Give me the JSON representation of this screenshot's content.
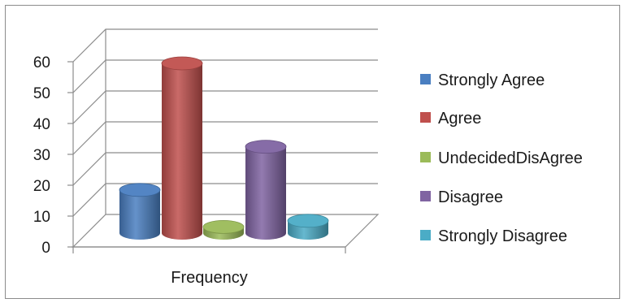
{
  "chart_data": {
    "type": "bar",
    "style": "3d-cylinder",
    "categories": [
      "Frequency"
    ],
    "series": [
      {
        "name": "Strongly Agree",
        "values": [
          14
        ],
        "color": "#4a7fc1"
      },
      {
        "name": "Agree",
        "values": [
          55
        ],
        "color": "#c0504d"
      },
      {
        "name": "UndecidedDisAgree",
        "values": [
          2
        ],
        "color": "#9bbb59"
      },
      {
        "name": "Disagree",
        "values": [
          28
        ],
        "color": "#8064a2"
      },
      {
        "name": "Strongly Disagree",
        "values": [
          4
        ],
        "color": "#4bacc6"
      }
    ],
    "y_ticks": [
      "0",
      "10",
      "20",
      "30",
      "40",
      "50",
      "60"
    ],
    "ylim": [
      0,
      60
    ],
    "grid": true,
    "legend_position": "right",
    "title": "",
    "xlabel": "",
    "ylabel": ""
  }
}
